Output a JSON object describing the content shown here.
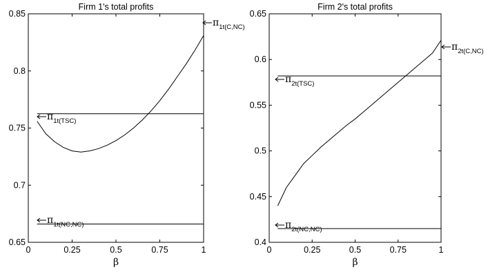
{
  "chart_data": [
    {
      "type": "line",
      "title": "Firm 1's total profits",
      "xlabel": "β",
      "ylabel": "",
      "xlim": [
        0,
        1
      ],
      "ylim": [
        0.65,
        0.85
      ],
      "xticks": [
        0,
        0.25,
        0.5,
        0.75,
        1
      ],
      "xtick_labels": [
        "0",
        "0.25",
        "0.5",
        "0.75",
        "1"
      ],
      "yticks": [
        0.65,
        0.7,
        0.75,
        0.8,
        0.85
      ],
      "ytick_labels": [
        "0.65",
        "0.7",
        "0.75",
        "0.8",
        "0.85"
      ],
      "grid": false,
      "color": "#000000",
      "series": [
        {
          "x": [
            0.05,
            0.1,
            0.15,
            0.2,
            0.25,
            0.3,
            0.35,
            0.4,
            0.45,
            0.5,
            0.55,
            0.6,
            0.65,
            0.7,
            0.75,
            0.8,
            0.85,
            0.9,
            0.95,
            1.0
          ],
          "y": [
            0.756,
            0.745,
            0.738,
            0.733,
            0.73,
            0.729,
            0.73,
            0.732,
            0.735,
            0.739,
            0.744,
            0.75,
            0.757,
            0.765,
            0.774,
            0.784,
            0.795,
            0.806,
            0.818,
            0.831
          ],
          "annotation": {
            "symbol": "π",
            "sub": "1t(C,NC)"
          }
        },
        {
          "x": [
            0.05,
            1.0
          ],
          "y": [
            0.7625,
            0.7625
          ],
          "annotation": {
            "symbol": "π",
            "sub": "1t(TSC)"
          }
        },
        {
          "x": [
            0.05,
            1.0
          ],
          "y": [
            0.666,
            0.666
          ],
          "annotation": {
            "symbol": "π",
            "sub": "1t(NC,NC)"
          }
        }
      ]
    },
    {
      "type": "line",
      "title": "Firm 2's total profits",
      "xlabel": "β",
      "ylabel": "",
      "xlim": [
        0,
        1
      ],
      "ylim": [
        0.4,
        0.65
      ],
      "xticks": [
        0,
        0.25,
        0.5,
        0.75,
        1
      ],
      "xtick_labels": [
        "0",
        "0.25",
        "0.5",
        "0.75",
        "1"
      ],
      "yticks": [
        0.4,
        0.45,
        0.5,
        0.55,
        0.6,
        0.65
      ],
      "ytick_labels": [
        "0.4",
        "0.45",
        "0.5",
        "0.55",
        "0.6",
        "0.65"
      ],
      "grid": false,
      "color": "#000000",
      "series": [
        {
          "x": [
            0.05,
            0.1,
            0.15,
            0.2,
            0.25,
            0.3,
            0.35,
            0.4,
            0.45,
            0.5,
            0.55,
            0.6,
            0.65,
            0.7,
            0.75,
            0.8,
            0.85,
            0.9,
            0.95,
            1.0
          ],
          "y": [
            0.44,
            0.46,
            0.473,
            0.486,
            0.495,
            0.504,
            0.512,
            0.52,
            0.528,
            0.535,
            0.543,
            0.551,
            0.559,
            0.567,
            0.575,
            0.583,
            0.591,
            0.599,
            0.607,
            0.621
          ],
          "annotation": {
            "symbol": "π",
            "sub": "2t(C,NC)"
          }
        },
        {
          "x": [
            0.05,
            1.0
          ],
          "y": [
            0.582,
            0.582
          ],
          "annotation": {
            "symbol": "π",
            "sub": "2t(TSC)"
          }
        },
        {
          "x": [
            0.05,
            1.0
          ],
          "y": [
            0.415,
            0.415
          ],
          "annotation": {
            "symbol": "π",
            "sub": "2t(NC,NC)"
          }
        }
      ]
    }
  ]
}
